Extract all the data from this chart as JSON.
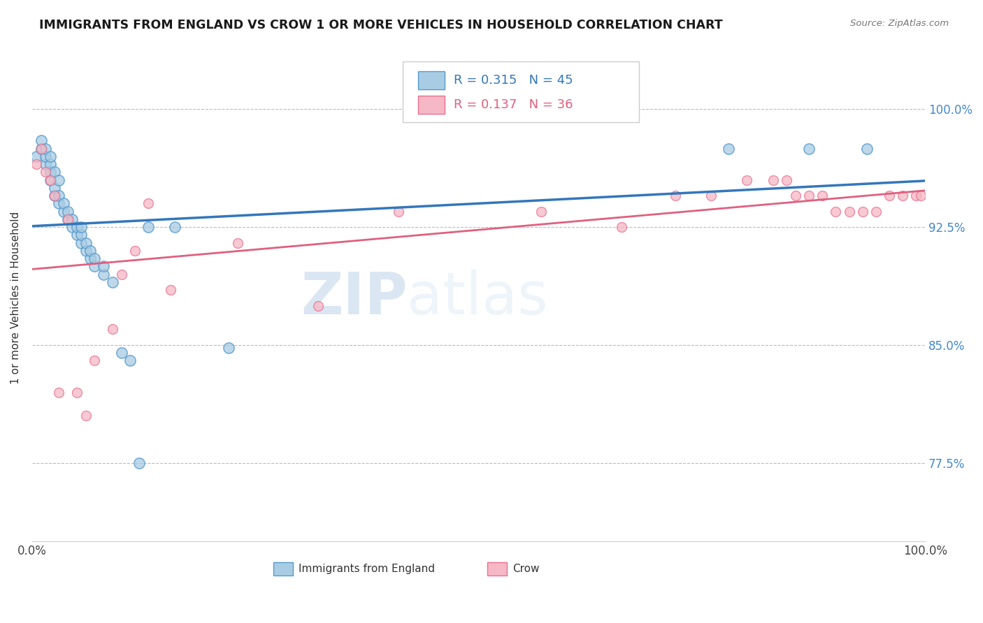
{
  "title": "IMMIGRANTS FROM ENGLAND VS CROW 1 OR MORE VEHICLES IN HOUSEHOLD CORRELATION CHART",
  "source": "Source: ZipAtlas.com",
  "ylabel": "1 or more Vehicles in Household",
  "xlim": [
    0.0,
    1.0
  ],
  "ylim": [
    0.725,
    1.035
  ],
  "yticks": [
    0.775,
    0.85,
    0.925,
    1.0
  ],
  "ytick_labels": [
    "77.5%",
    "85.0%",
    "92.5%",
    "100.0%"
  ],
  "xtick_labels": [
    "0.0%",
    "100.0%"
  ],
  "legend_blue_R": "R = 0.315",
  "legend_blue_N": "N = 45",
  "legend_pink_R": "R = 0.137",
  "legend_pink_N": "N = 36",
  "legend_label_blue": "Immigrants from England",
  "legend_label_pink": "Crow",
  "blue_color": "#a8cce4",
  "pink_color": "#f5b8c4",
  "blue_edge_color": "#5599cc",
  "pink_edge_color": "#e87090",
  "blue_line_color": "#3377bb",
  "pink_line_color": "#e06080",
  "watermark_zip": "ZIP",
  "watermark_atlas": "atlas",
  "blue_x": [
    0.005,
    0.01,
    0.01,
    0.015,
    0.015,
    0.015,
    0.02,
    0.02,
    0.02,
    0.02,
    0.025,
    0.025,
    0.025,
    0.03,
    0.03,
    0.03,
    0.035,
    0.035,
    0.04,
    0.04,
    0.045,
    0.045,
    0.05,
    0.05,
    0.055,
    0.055,
    0.055,
    0.06,
    0.06,
    0.065,
    0.065,
    0.07,
    0.07,
    0.08,
    0.08,
    0.09,
    0.1,
    0.11,
    0.12,
    0.13,
    0.16,
    0.22,
    0.78,
    0.87,
    0.935
  ],
  "blue_y": [
    0.97,
    0.975,
    0.98,
    0.965,
    0.97,
    0.975,
    0.955,
    0.96,
    0.965,
    0.97,
    0.945,
    0.95,
    0.96,
    0.94,
    0.945,
    0.955,
    0.935,
    0.94,
    0.93,
    0.935,
    0.925,
    0.93,
    0.92,
    0.925,
    0.915,
    0.92,
    0.925,
    0.91,
    0.915,
    0.905,
    0.91,
    0.9,
    0.905,
    0.895,
    0.9,
    0.89,
    0.845,
    0.84,
    0.775,
    0.925,
    0.925,
    0.848,
    0.975,
    0.975,
    0.975
  ],
  "blue_sizes": [
    300,
    150,
    150,
    150,
    150,
    150,
    150,
    150,
    150,
    150,
    150,
    150,
    150,
    150,
    150,
    150,
    150,
    150,
    150,
    150,
    150,
    150,
    150,
    150,
    150,
    150,
    150,
    150,
    150,
    150,
    150,
    150,
    150,
    150,
    150,
    150,
    150,
    150,
    150,
    150,
    150,
    150,
    150,
    150,
    150
  ],
  "pink_x": [
    0.005,
    0.01,
    0.015,
    0.02,
    0.025,
    0.03,
    0.04,
    0.05,
    0.06,
    0.07,
    0.09,
    0.1,
    0.115,
    0.13,
    0.155,
    0.23,
    0.32,
    0.41,
    0.57,
    0.66,
    0.72,
    0.76,
    0.8,
    0.83,
    0.845,
    0.855,
    0.87,
    0.885,
    0.9,
    0.915,
    0.93,
    0.945,
    0.96,
    0.975,
    0.99,
    0.995
  ],
  "pink_y": [
    0.965,
    0.975,
    0.96,
    0.955,
    0.945,
    0.82,
    0.93,
    0.82,
    0.805,
    0.84,
    0.86,
    0.895,
    0.91,
    0.94,
    0.885,
    0.915,
    0.875,
    0.935,
    0.935,
    0.925,
    0.945,
    0.945,
    0.955,
    0.955,
    0.955,
    0.945,
    0.945,
    0.945,
    0.935,
    0.935,
    0.935,
    0.935,
    0.945,
    0.945,
    0.945,
    0.945
  ]
}
